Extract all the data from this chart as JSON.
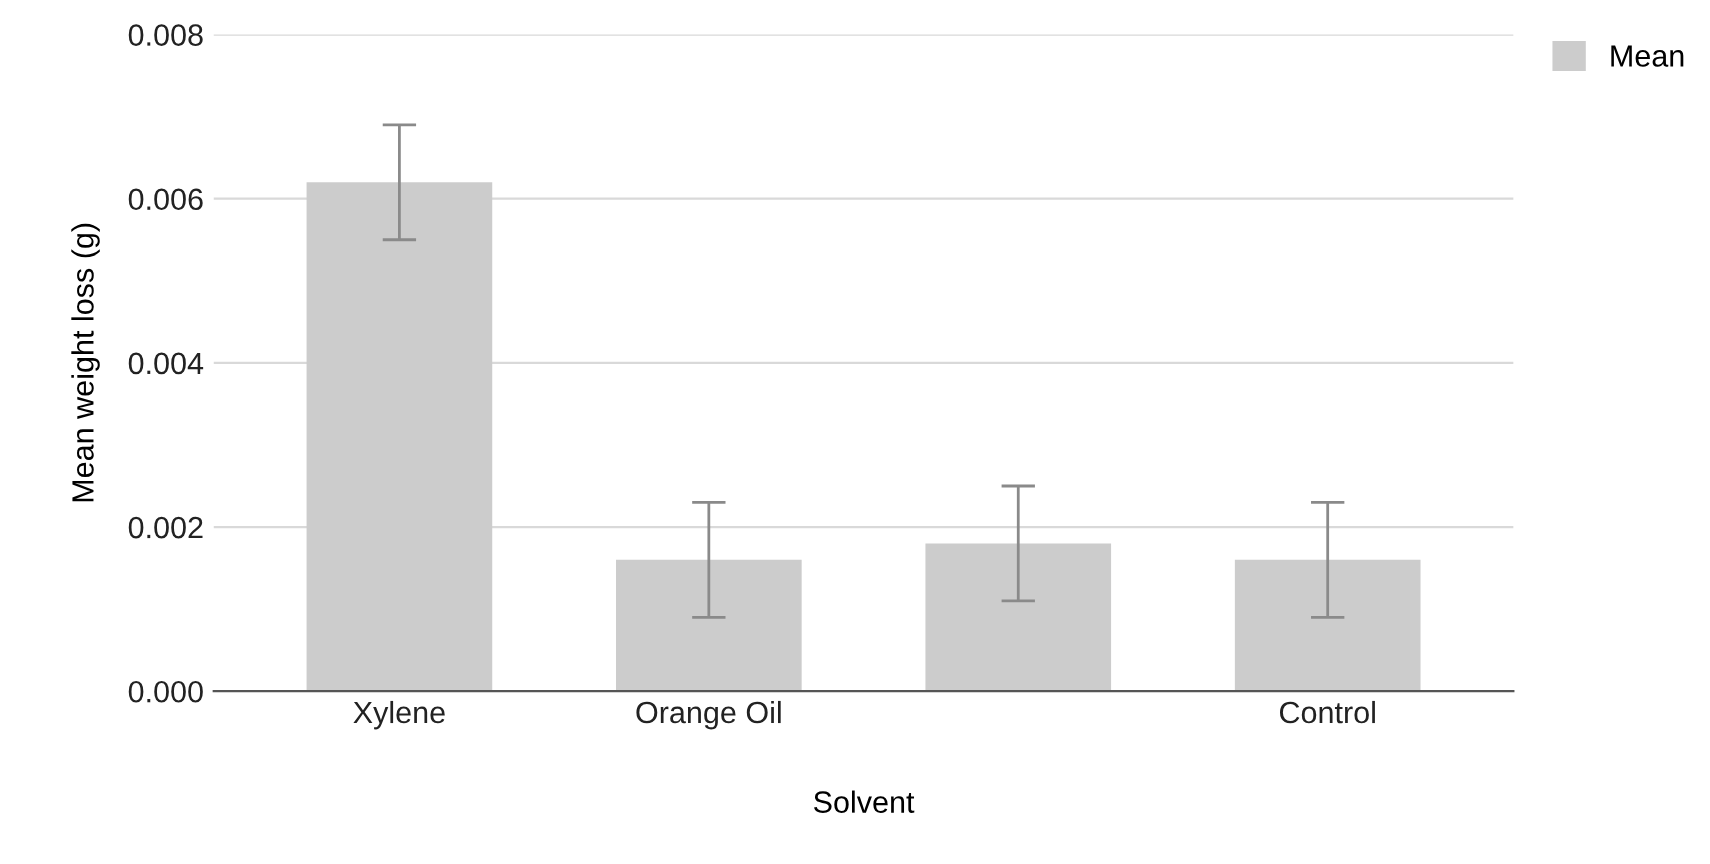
{
  "chart_data": {
    "type": "bar",
    "xlabel": "Solvent",
    "ylabel": "Mean weight loss (g)",
    "categories": [
      "Xylene",
      "Orange Oil",
      null,
      "Control"
    ],
    "series": [
      {
        "name": "Mean",
        "color": "#cccccc",
        "values": [
          0.0062,
          0.0016,
          0.0018,
          0.0016
        ],
        "errors": [
          [
            0.0055,
            0.0069
          ],
          [
            0.0009,
            0.0023
          ],
          [
            0.0011,
            0.0025
          ],
          [
            0.0009,
            0.0023
          ]
        ]
      }
    ],
    "ylim": [
      0,
      0.008
    ],
    "yticks": [
      {
        "value": 0,
        "label": "0.000"
      },
      {
        "value": 0.002,
        "label": "0.002"
      },
      {
        "value": 0.004,
        "label": "0.004"
      },
      {
        "value": 0.006,
        "label": "0.006"
      },
      {
        "value": 0.008,
        "label": "0.008"
      }
    ],
    "grid": "y",
    "legend": "top right"
  }
}
